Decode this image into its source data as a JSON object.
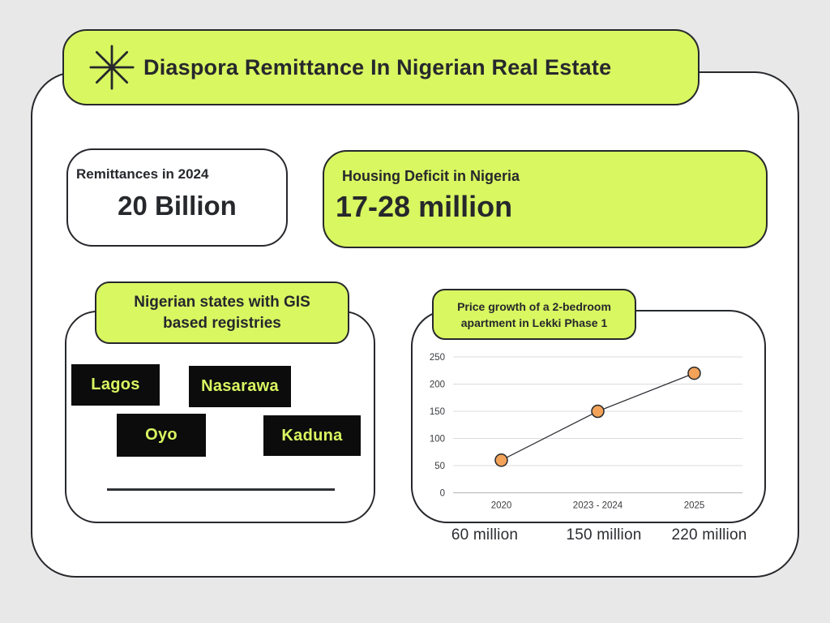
{
  "colors": {
    "lime": "#d9f761",
    "dark": "#26282c",
    "tag_bg": "#0c0c0c",
    "background": "#e8e8e8",
    "point_orange": "#f2a359",
    "gridline": "#dcdcdc"
  },
  "banner": {
    "title": "Diaspora Remittance In Nigerian Real Estate",
    "icon": "asterisk-icon"
  },
  "cards": {
    "remittances": {
      "label": "Remittances in 2024",
      "value": "20 Billion"
    },
    "housing": {
      "label": "Housing Deficit in Nigeria",
      "value": "17-28 million"
    }
  },
  "states_panel": {
    "title_line1": "Nigerian states with GIS",
    "title_line2": "based registries",
    "states": [
      "Lagos",
      "Nasarawa",
      "Oyo",
      "Kaduna"
    ]
  },
  "chart_panel": {
    "title_line1": "Price growth of a 2-bedroom",
    "title_line2": "apartment in Lekki Phase 1"
  },
  "chart_data": {
    "type": "line",
    "title": "Price growth of a 2-bedroom apartment in Lekki Phase 1",
    "categories": [
      "2020",
      "2023 - 2024",
      "2025"
    ],
    "values": [
      60,
      150,
      220
    ],
    "yticks": [
      0,
      50,
      100,
      150,
      200,
      250
    ],
    "ylim": [
      0,
      250
    ],
    "xlabel": "",
    "ylabel": "",
    "grid": true,
    "legend": false,
    "line_color": "#2f3136",
    "point_color": "#f2a359",
    "point_labels": [
      "60 million",
      "150 million",
      "220 million"
    ]
  }
}
